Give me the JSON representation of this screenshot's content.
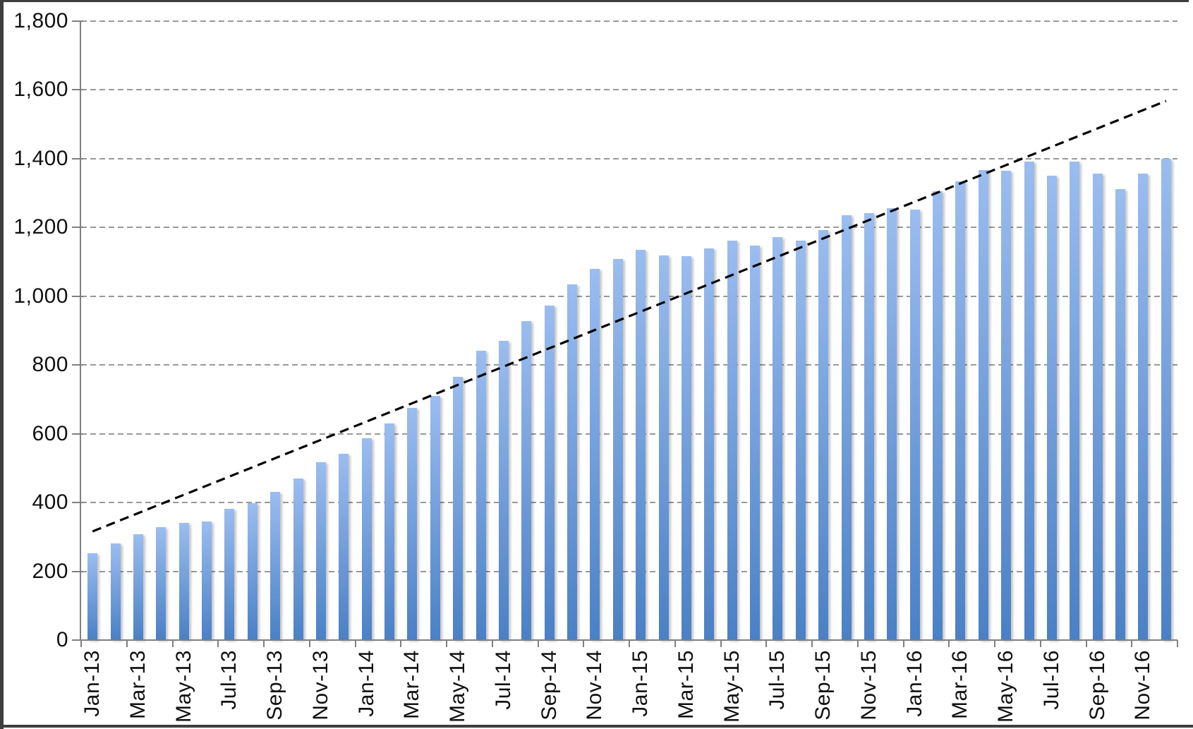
{
  "chart_data": {
    "type": "bar",
    "title": "",
    "legend": "none",
    "categories": [
      "Jan-13",
      "Feb-13",
      "Mar-13",
      "Apr-13",
      "May-13",
      "Jun-13",
      "Jul-13",
      "Aug-13",
      "Sep-13",
      "Oct-13",
      "Nov-13",
      "Dec-13",
      "Jan-14",
      "Feb-14",
      "Mar-14",
      "Apr-14",
      "May-14",
      "Jun-14",
      "Jul-14",
      "Aug-14",
      "Sep-14",
      "Oct-14",
      "Nov-14",
      "Dec-14",
      "Jan-15",
      "Feb-15",
      "Mar-15",
      "Apr-15",
      "May-15",
      "Jun-15",
      "Jul-15",
      "Aug-15",
      "Sep-15",
      "Oct-15",
      "Nov-15",
      "Dec-15",
      "Jan-16",
      "Feb-16",
      "Mar-16",
      "Apr-16",
      "May-16",
      "Jun-16",
      "Jul-16",
      "Aug-16",
      "Sep-16",
      "Oct-16",
      "Nov-16",
      "Dec-16"
    ],
    "values": [
      253,
      281,
      308,
      329,
      341,
      345,
      382,
      399,
      431,
      470,
      517,
      541,
      588,
      630,
      676,
      710,
      765,
      842,
      871,
      928,
      972,
      1034,
      1079,
      1109,
      1135,
      1119,
      1116,
      1140,
      1162,
      1147,
      1172,
      1161,
      1192,
      1236,
      1241,
      1257,
      1251,
      1306,
      1334,
      1367,
      1364,
      1392,
      1350,
      1392,
      1357,
      1312,
      1357,
      1400
    ],
    "x_tick_labels": [
      "Jan-13",
      "Mar-13",
      "May-13",
      "Jul-13",
      "Sep-13",
      "Nov-13",
      "Jan-14",
      "Mar-14",
      "May-14",
      "Jul-14",
      "Sep-14",
      "Nov-14",
      "Jan-15",
      "Mar-15",
      "May-15",
      "Jul-15",
      "Sep-15",
      "Nov-15",
      "Jan-16",
      "Mar-16",
      "May-16",
      "Jul-16",
      "Sep-16",
      "Nov-16"
    ],
    "y_tick_labels": [
      "0",
      "200",
      "400",
      "600",
      "800",
      "1,000",
      "1,200",
      "1,400",
      "1,600",
      "1,800"
    ],
    "ylim": [
      0,
      1800
    ],
    "y_step": 200,
    "grid": "horizontal-dashed",
    "trendline": {
      "type": "linear",
      "style": "dashed",
      "color": "#000000",
      "start_value": 316,
      "end_value": 1568
    },
    "colors": {
      "bar_gradient_top": "#9BBDF0",
      "bar_gradient_bottom": "#4A80C5",
      "gridline": "#999999",
      "axis": "#808080",
      "label": "#111111",
      "frame_border": "#3e3e3e",
      "background": "#ffffff"
    }
  }
}
